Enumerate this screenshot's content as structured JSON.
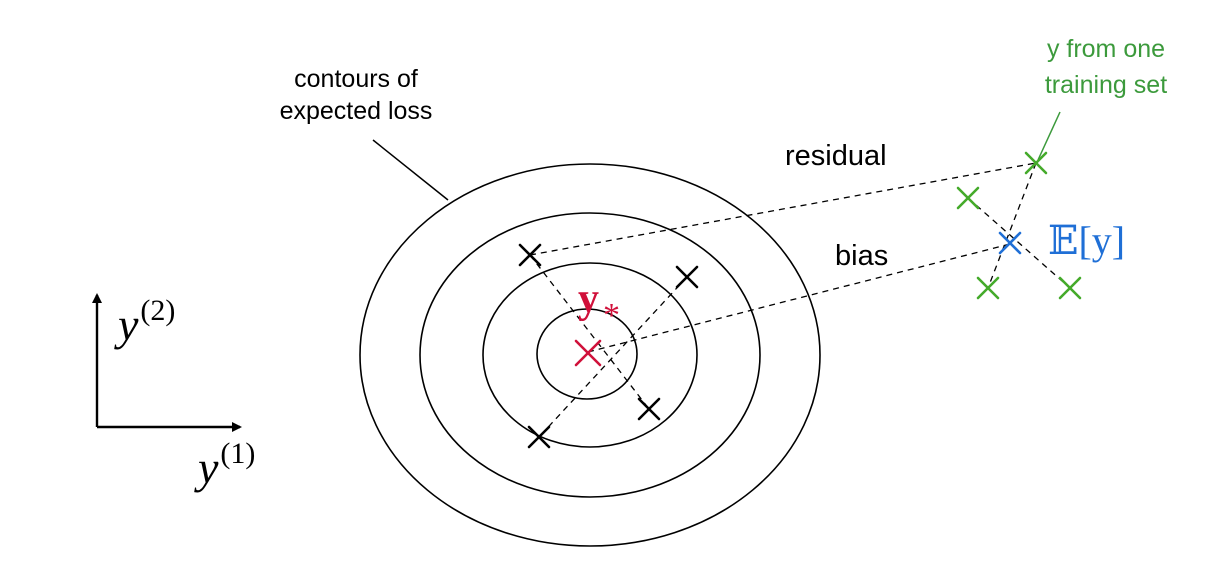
{
  "labels": {
    "contours_line1": "contours of",
    "contours_line2": "expected loss",
    "residual": "residual",
    "bias": "bias",
    "training_line1": "y from one",
    "training_line2": "training set",
    "optimum": "y",
    "optimum_sub": "*",
    "expectation": "𝔼[y]",
    "axis_y2_base": "y",
    "axis_y2_sup": "(2)",
    "axis_y1_base": "y",
    "axis_y1_sup": "(1)"
  },
  "colors": {
    "ink": "#000000",
    "red": "#d0103a",
    "blue": "#1f6fd6",
    "green": "#44aa2a",
    "green_text": "#3c9a3c"
  }
}
